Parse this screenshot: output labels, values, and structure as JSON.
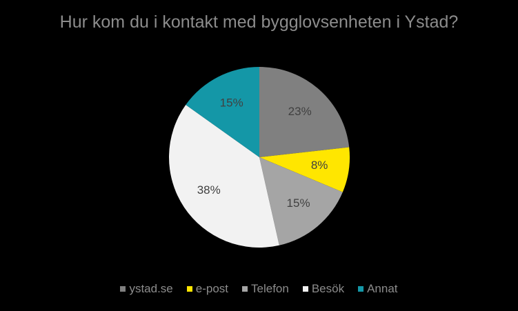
{
  "chart_data": {
    "type": "pie",
    "title": "Hur kom du i kontakt med bygglovsenheten i Ystad?",
    "legend_position": "bottom",
    "slices": [
      {
        "label": "ystad.se",
        "value": 23,
        "display": "23%",
        "color": "#808080"
      },
      {
        "label": "e-post",
        "value": 8,
        "display": "8%",
        "color": "#ffe600"
      },
      {
        "label": "Telefon",
        "value": 15,
        "display": "15%",
        "color": "#a5a5a5"
      },
      {
        "label": "Besök",
        "value": 38,
        "display": "38%",
        "color": "#f2f2f2"
      },
      {
        "label": "Annat",
        "value": 15,
        "display": "15%",
        "color": "#1497a7"
      }
    ]
  }
}
